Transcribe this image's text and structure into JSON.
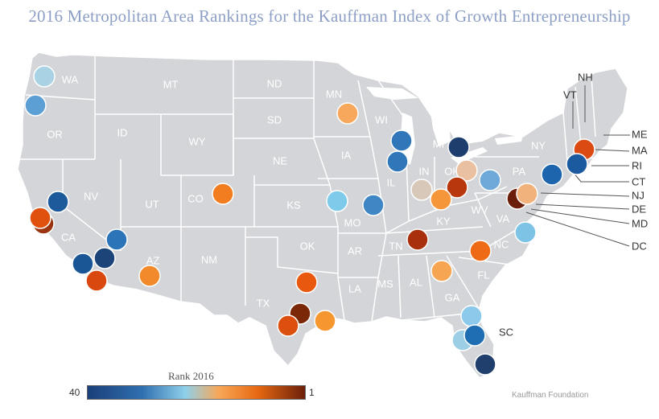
{
  "title": "2016 Metropolitan Area Rankings for the Kauffman Index of Growth Entrepreneurship",
  "legend": {
    "title": "Rank 2016",
    "min_label": "40",
    "max_label": "1"
  },
  "source": "Kauffman Foundation",
  "colors": {
    "land": "#d3d5d8",
    "border": "#ffffff",
    "scale": [
      "#1b3f7a",
      "#2f6fb0",
      "#8fd0ea",
      "#f7a85a",
      "#e86a12",
      "#6b1f0a"
    ]
  },
  "state_labels": [
    "WA",
    "OR",
    "CA",
    "NV",
    "ID",
    "MT",
    "WY",
    "UT",
    "AZ",
    "CO",
    "NM",
    "ND",
    "SD",
    "NE",
    "KS",
    "OK",
    "TX",
    "MN",
    "IA",
    "MO",
    "AR",
    "LA",
    "WI",
    "IL",
    "MI",
    "IN",
    "OH",
    "KY",
    "TN",
    "MS",
    "AL",
    "GA",
    "FL",
    "SC",
    "NC",
    "VA",
    "WV",
    "PA",
    "NY",
    "VT",
    "NH",
    "ME",
    "MA",
    "RI",
    "CT",
    "NJ",
    "DE",
    "MD",
    "DC"
  ],
  "metros": [
    {
      "state": "WA",
      "color": "#a9d3e4"
    },
    {
      "state": "OR",
      "color": "#5b9fd4"
    },
    {
      "state": "CA",
      "color": "#1d5a9c"
    },
    {
      "state": "CA",
      "color": "#9b3410"
    },
    {
      "state": "CA",
      "color": "#e0510f"
    },
    {
      "state": "CA",
      "color": "#2c74b8"
    },
    {
      "state": "CA",
      "color": "#1a5596"
    },
    {
      "state": "CA",
      "color": "#1d4478"
    },
    {
      "state": "CA",
      "color": "#d9480e"
    },
    {
      "state": "AZ",
      "color": "#f28a2c"
    },
    {
      "state": "CO",
      "color": "#f27d20"
    },
    {
      "state": "MO",
      "color": "#7ecaea"
    },
    {
      "state": "TX",
      "color": "#e8590f"
    },
    {
      "state": "TX",
      "color": "#7a2808"
    },
    {
      "state": "TX",
      "color": "#dc4f0e"
    },
    {
      "state": "TX",
      "color": "#f6962e"
    },
    {
      "state": "MN",
      "color": "#f7a85c"
    },
    {
      "state": "WI",
      "color": "#2f77b9"
    },
    {
      "state": "IL",
      "color": "#2f77b9"
    },
    {
      "state": "MO",
      "color": "#3f86c4"
    },
    {
      "state": "MI",
      "color": "#1e3f6e"
    },
    {
      "state": "IN",
      "color": "#d8c8ba"
    },
    {
      "state": "OH",
      "color": "#e9c0a0"
    },
    {
      "state": "OH",
      "color": "#b9370c"
    },
    {
      "state": "OH",
      "color": "#f5963a"
    },
    {
      "state": "TN",
      "color": "#a8300c"
    },
    {
      "state": "NC",
      "color": "#ef6a14"
    },
    {
      "state": "SC",
      "color": "#f6a552"
    },
    {
      "state": "FL",
      "color": "#8cc9ea"
    },
    {
      "state": "FL",
      "color": "#9ccfe6"
    },
    {
      "state": "FL",
      "color": "#1f6db2"
    },
    {
      "state": "FL",
      "color": "#203f6c"
    },
    {
      "state": "PA",
      "color": "#6ea9d9"
    },
    {
      "state": "PA",
      "color": "#6b1f0a"
    },
    {
      "state": "NJ",
      "color": "#f2b27c"
    },
    {
      "state": "NY",
      "color": "#1d66ad"
    },
    {
      "state": "VA",
      "color": "#7dc3e6"
    },
    {
      "state": "MA",
      "color": "#db4a12"
    },
    {
      "state": "MA",
      "color": "#1c5aa0"
    }
  ]
}
